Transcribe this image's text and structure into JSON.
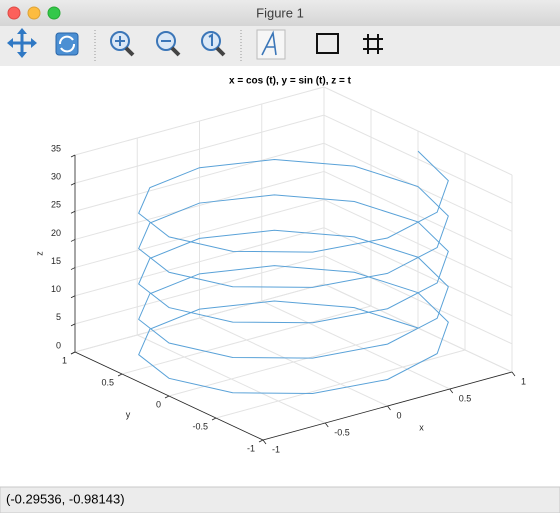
{
  "window": {
    "title": "Figure 1",
    "status": "(-0.29536, -0.98143)"
  },
  "chart_data": {
    "type": "line3d",
    "title": "x = cos (t), y = sin (t), z = t",
    "xlabel": "x",
    "ylabel": "y",
    "zlabel": "z",
    "color": "#5aa2d8",
    "grid": true,
    "xlim": [
      -1,
      1
    ],
    "ylim": [
      -1,
      1
    ],
    "zlim": [
      0,
      35
    ],
    "xticks": [
      -1,
      -0.5,
      0,
      0.5,
      1
    ],
    "yticks": [
      -1,
      -0.5,
      0,
      0.5,
      1
    ],
    "zticks": [
      0,
      5,
      10,
      15,
      20,
      25,
      30,
      35
    ],
    "x": [
      1,
      0.866,
      0.5,
      0,
      -0.5,
      -0.866,
      -1,
      -0.866,
      -0.5,
      0,
      0.5,
      0.866,
      1,
      0.866,
      0.5,
      0,
      -0.5,
      -0.866,
      -1,
      -0.866,
      -0.5,
      0,
      0.5,
      0.866,
      1,
      0.866,
      0.5,
      0,
      -0.5,
      -0.866,
      -1,
      -0.866,
      -0.5,
      0,
      0.5,
      0.866,
      1,
      0.866,
      0.5,
      0,
      -0.5,
      -0.866,
      -1,
      -0.866,
      -0.5,
      0,
      0.5,
      0.866,
      1,
      0.866,
      0.5,
      0,
      -0.5,
      -0.866,
      -1,
      -0.866,
      -0.5,
      0,
      0.5,
      0.866,
      1
    ],
    "y": [
      0,
      0.5,
      0.866,
      1,
      0.866,
      0.5,
      0,
      -0.5,
      -0.866,
      -1,
      -0.866,
      -0.5,
      0,
      0.5,
      0.866,
      1,
      0.866,
      0.5,
      0,
      -0.5,
      -0.866,
      -1,
      -0.866,
      -0.5,
      0,
      0.5,
      0.866,
      1,
      0.866,
      0.5,
      0,
      -0.5,
      -0.866,
      -1,
      -0.866,
      -0.5,
      0,
      0.5,
      0.866,
      1,
      0.866,
      0.5,
      0,
      -0.5,
      -0.866,
      -1,
      -0.866,
      -0.5,
      0,
      0.5,
      0.866,
      1,
      0.866,
      0.5,
      0,
      -0.5,
      -0.866,
      -1,
      -0.866,
      -0.5,
      0
    ],
    "z": [
      0,
      0.52,
      1.05,
      1.57,
      2.09,
      2.62,
      3.14,
      3.67,
      4.19,
      4.71,
      5.24,
      5.76,
      6.28,
      6.81,
      7.33,
      7.85,
      8.38,
      8.9,
      9.42,
      9.95,
      10.47,
      11,
      11.52,
      12.04,
      12.57,
      13.09,
      13.61,
      14.14,
      14.66,
      15.18,
      15.71,
      16.23,
      16.76,
      17.28,
      17.8,
      18.33,
      18.85,
      19.37,
      19.9,
      20.42,
      20.94,
      21.47,
      21.99,
      22.51,
      23.04,
      23.56,
      24.09,
      24.61,
      25.13,
      25.66,
      26.18,
      26.7,
      27.23,
      27.75,
      28.27,
      28.8,
      29.32,
      29.85,
      30.37,
      30.89,
      31.42
    ]
  }
}
